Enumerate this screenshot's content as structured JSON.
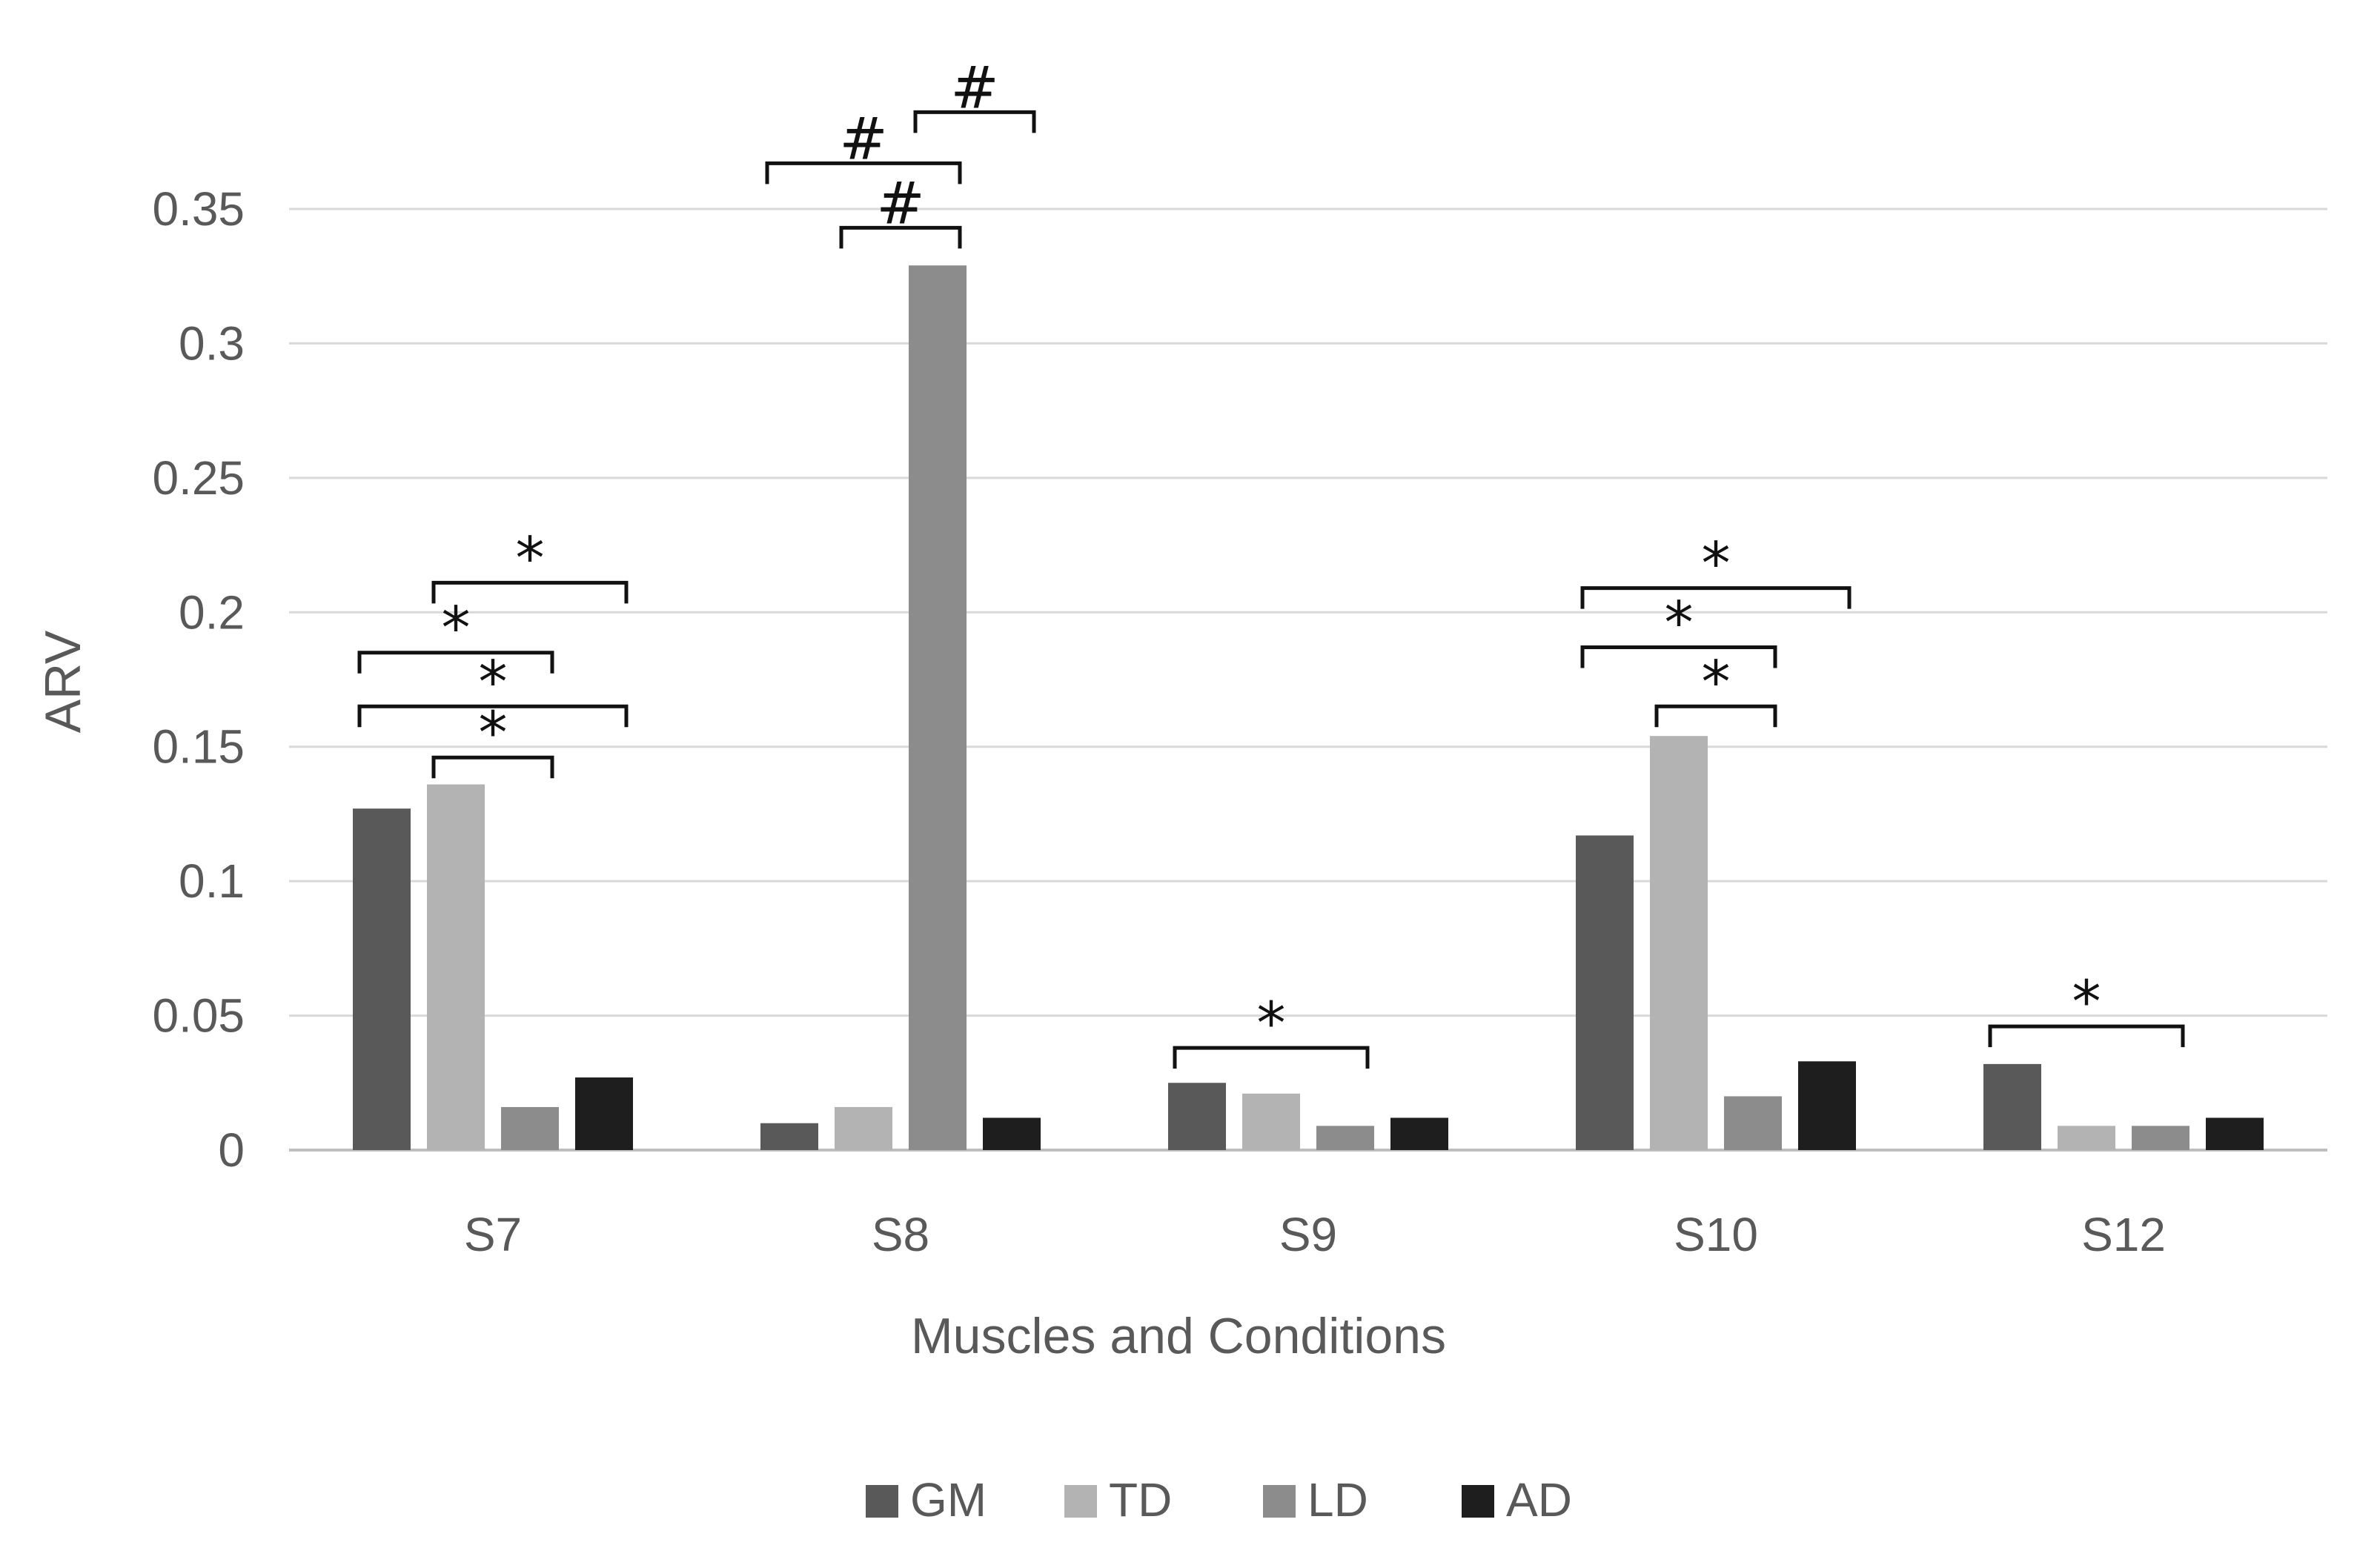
{
  "chart_data": {
    "type": "bar",
    "title": "",
    "xlabel": "Muscles and Conditions",
    "ylabel": "ARV",
    "ylim": [
      0,
      0.35
    ],
    "yticks": [
      {
        "value": 0,
        "label": "0"
      },
      {
        "value": 0.05,
        "label": "0.05"
      },
      {
        "value": 0.1,
        "label": "0.1"
      },
      {
        "value": 0.15,
        "label": "0.15"
      },
      {
        "value": 0.2,
        "label": "0.2"
      },
      {
        "value": 0.25,
        "label": "0.25"
      },
      {
        "value": 0.3,
        "label": "0.3"
      },
      {
        "value": 0.35,
        "label": "0.35"
      }
    ],
    "grid": true,
    "legend_position": "bottom",
    "categories": [
      "S7",
      "S8",
      "S9",
      "S10",
      "S12"
    ],
    "series": [
      {
        "name": "GM",
        "color": "#595959",
        "values": [
          0.127,
          0.01,
          0.025,
          0.117,
          0.032
        ]
      },
      {
        "name": "TD",
        "color": "#b3b3b3",
        "values": [
          0.136,
          0.016,
          0.021,
          0.154,
          0.009
        ]
      },
      {
        "name": "LD",
        "color": "#8c8c8c",
        "values": [
          0.016,
          0.329,
          0.009,
          0.02,
          0.009
        ]
      },
      {
        "name": "AD",
        "color": "#1e1e1e",
        "values": [
          0.027,
          0.012,
          0.012,
          0.033,
          0.012
        ]
      }
    ],
    "annotations": [
      {
        "category": 0,
        "from": 1,
        "to": 2,
        "label": "*",
        "level": 0.146
      },
      {
        "category": 0,
        "from": 0,
        "to": 3,
        "label": "*",
        "level": 0.165
      },
      {
        "category": 0,
        "from": 0,
        "to": 2,
        "label": "*",
        "level": 0.185
      },
      {
        "category": 0,
        "from": 1,
        "to": 3,
        "label": "*",
        "level": 0.211
      },
      {
        "category": 1,
        "from": 1,
        "to": 2,
        "label": "#",
        "level": 0.343
      },
      {
        "category": 1,
        "from": 0,
        "to": 2,
        "label": "#",
        "level": 0.367
      },
      {
        "category": 1,
        "from": 2,
        "to": 3,
        "label": "#",
        "level": 0.386
      },
      {
        "category": 2,
        "from": 0,
        "to": 2,
        "label": "*",
        "level": 0.038
      },
      {
        "category": 3,
        "from": 1,
        "to": 2,
        "label": "*",
        "level": 0.165
      },
      {
        "category": 3,
        "from": 0,
        "to": 2,
        "label": "*",
        "level": 0.187
      },
      {
        "category": 3,
        "from": 0,
        "to": 3,
        "label": "*",
        "level": 0.209
      },
      {
        "category": 4,
        "from": 0,
        "to": 2,
        "label": "*",
        "level": 0.046
      }
    ]
  }
}
